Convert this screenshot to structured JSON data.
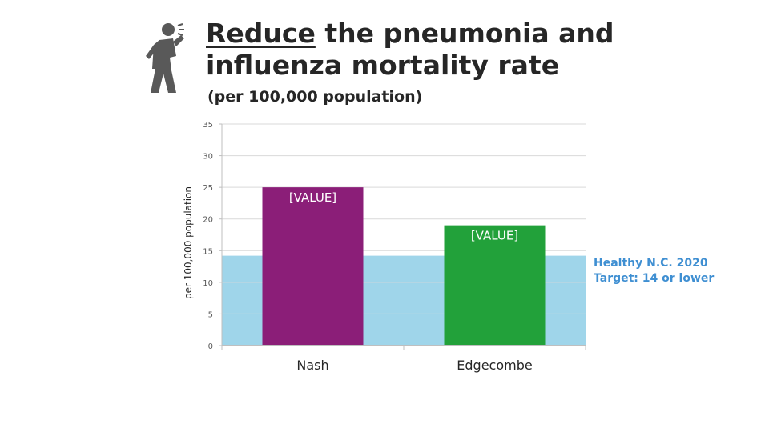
{
  "title_part1": "Reduce",
  "title_part2": " the pneumonia and influenza mortality rate",
  "subtitle": "(per 100,000 population)",
  "target_note": "Healthy N.C. 2020 Target: 14 or lower",
  "icon": "person-coughing-icon",
  "colors": {
    "nash": "#8b1e78",
    "edgecombe": "#22a13a",
    "target_band": "#9fd5ea",
    "target_text": "#3f8fd2",
    "grid": "#d9d9d9"
  },
  "chart_data": {
    "type": "bar",
    "categories": [
      "Nash",
      "Edgecombe"
    ],
    "values": [
      25,
      19
    ],
    "data_labels": [
      "[VALUE]",
      "[VALUE]"
    ],
    "bar_colors": [
      "#8b1e78",
      "#22a13a"
    ],
    "ylabel": "per 100,000 population",
    "ylim": [
      0,
      35
    ],
    "yticks": [
      0,
      5,
      10,
      15,
      20,
      25,
      30,
      35
    ],
    "grid": true,
    "target": {
      "value": 14.2,
      "label": "Healthy N.C. 2020 Target: 14 or lower"
    }
  }
}
